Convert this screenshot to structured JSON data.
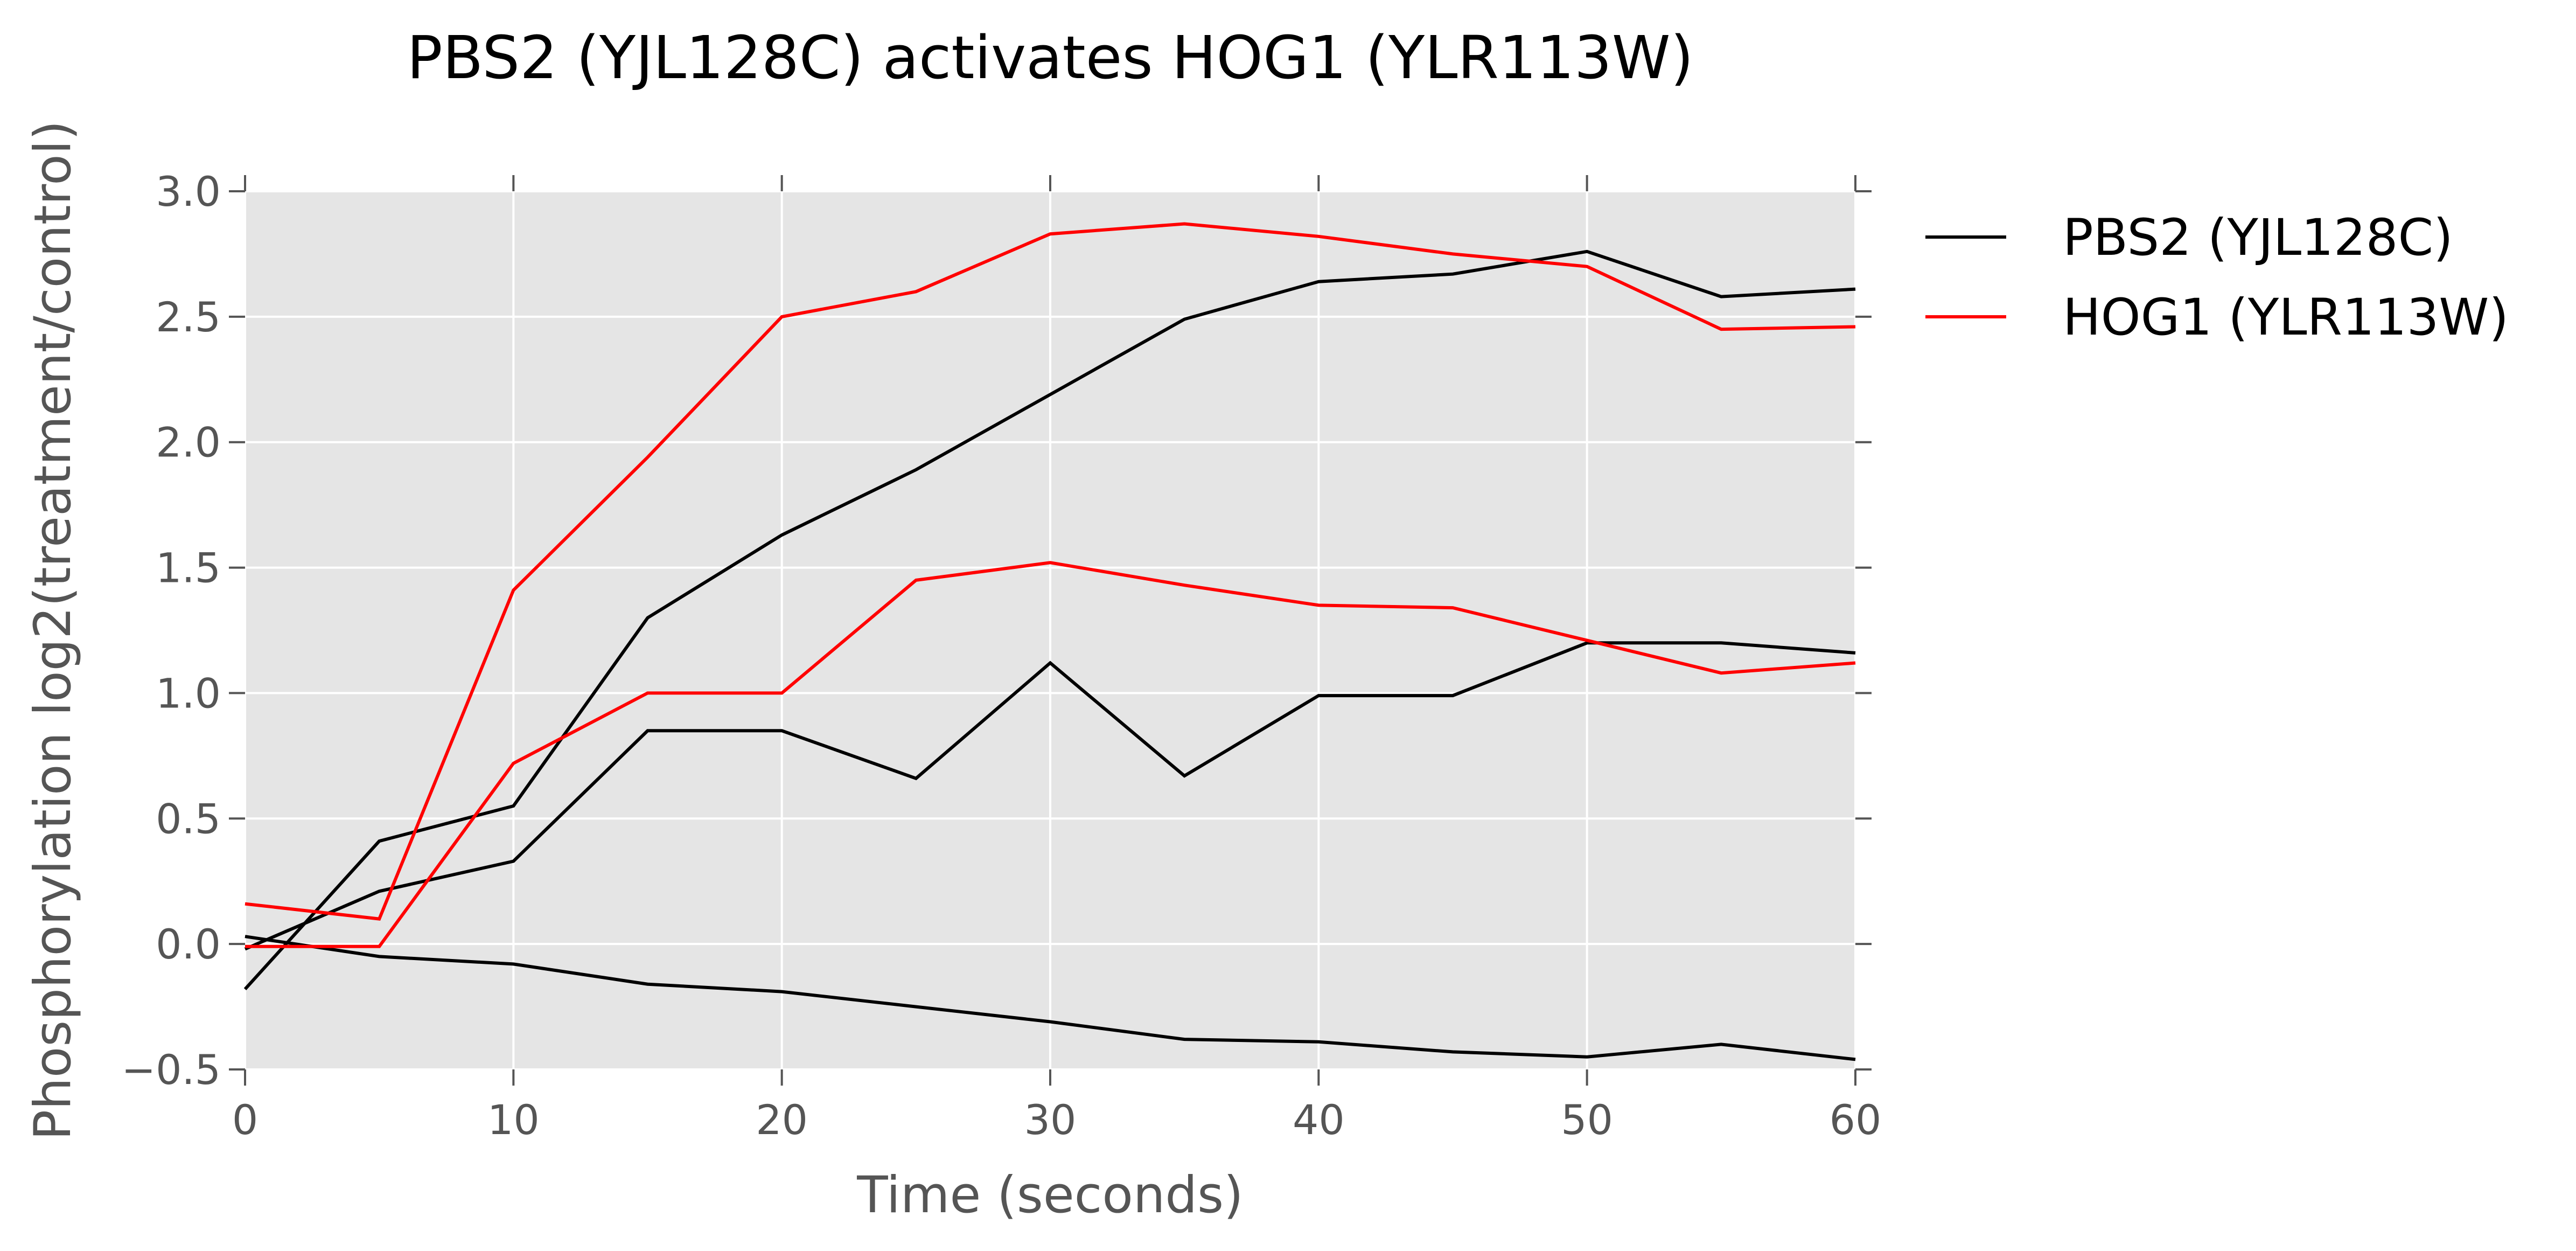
{
  "chart_data": {
    "type": "line",
    "title": "PBS2 (YJL128C) activates HOG1 (YLR113W)",
    "xlabel": "Time (seconds)",
    "ylabel": "Phosphorylation log2(treatment/control)",
    "xlim": [
      0,
      60
    ],
    "ylim": [
      -0.5,
      3.0
    ],
    "xticks": [
      0,
      10,
      20,
      30,
      40,
      50,
      60
    ],
    "yticks": [
      -0.5,
      0.0,
      0.5,
      1.0,
      1.5,
      2.0,
      2.5,
      3.0
    ],
    "ytick_labels": [
      "−0.5",
      "0.0",
      "0.5",
      "1.0",
      "1.5",
      "2.0",
      "2.5",
      "3.0"
    ],
    "grid": true,
    "legend_position": "outside-right",
    "background": "#e5e5e5",
    "x": [
      0,
      5,
      10,
      15,
      20,
      25,
      30,
      35,
      40,
      45,
      50,
      55,
      60
    ],
    "legend": [
      {
        "name": "PBS2 (YJL128C)",
        "color": "#000000"
      },
      {
        "name": "HOG1 (YLR113W)",
        "color": "#ff0000"
      }
    ],
    "series": [
      {
        "group": "PBS2 (YJL128C)",
        "color": "#000000",
        "values": [
          -0.18,
          0.41,
          0.55,
          1.3,
          1.63,
          1.89,
          2.19,
          2.49,
          2.64,
          2.67,
          2.76,
          2.58,
          2.61
        ]
      },
      {
        "group": "PBS2 (YJL128C)",
        "color": "#000000",
        "values": [
          -0.02,
          0.21,
          0.33,
          0.85,
          0.85,
          0.66,
          1.12,
          0.67,
          0.99,
          0.99,
          1.2,
          1.2,
          1.16
        ]
      },
      {
        "group": "PBS2 (YJL128C)",
        "color": "#000000",
        "values": [
          0.03,
          -0.05,
          -0.08,
          -0.16,
          -0.19,
          -0.25,
          -0.31,
          -0.38,
          -0.39,
          -0.43,
          -0.45,
          -0.4,
          -0.46
        ]
      },
      {
        "group": "HOG1 (YLR113W)",
        "color": "#ff0000",
        "values": [
          0.16,
          0.1,
          1.41,
          1.94,
          2.5,
          2.6,
          2.83,
          2.87,
          2.82,
          2.75,
          2.7,
          2.45,
          2.46
        ]
      },
      {
        "group": "HOG1 (YLR113W)",
        "color": "#ff0000",
        "values": [
          -0.01,
          -0.01,
          0.72,
          1.0,
          1.0,
          1.45,
          1.52,
          1.43,
          1.35,
          1.34,
          1.21,
          1.08,
          1.12
        ]
      }
    ]
  }
}
